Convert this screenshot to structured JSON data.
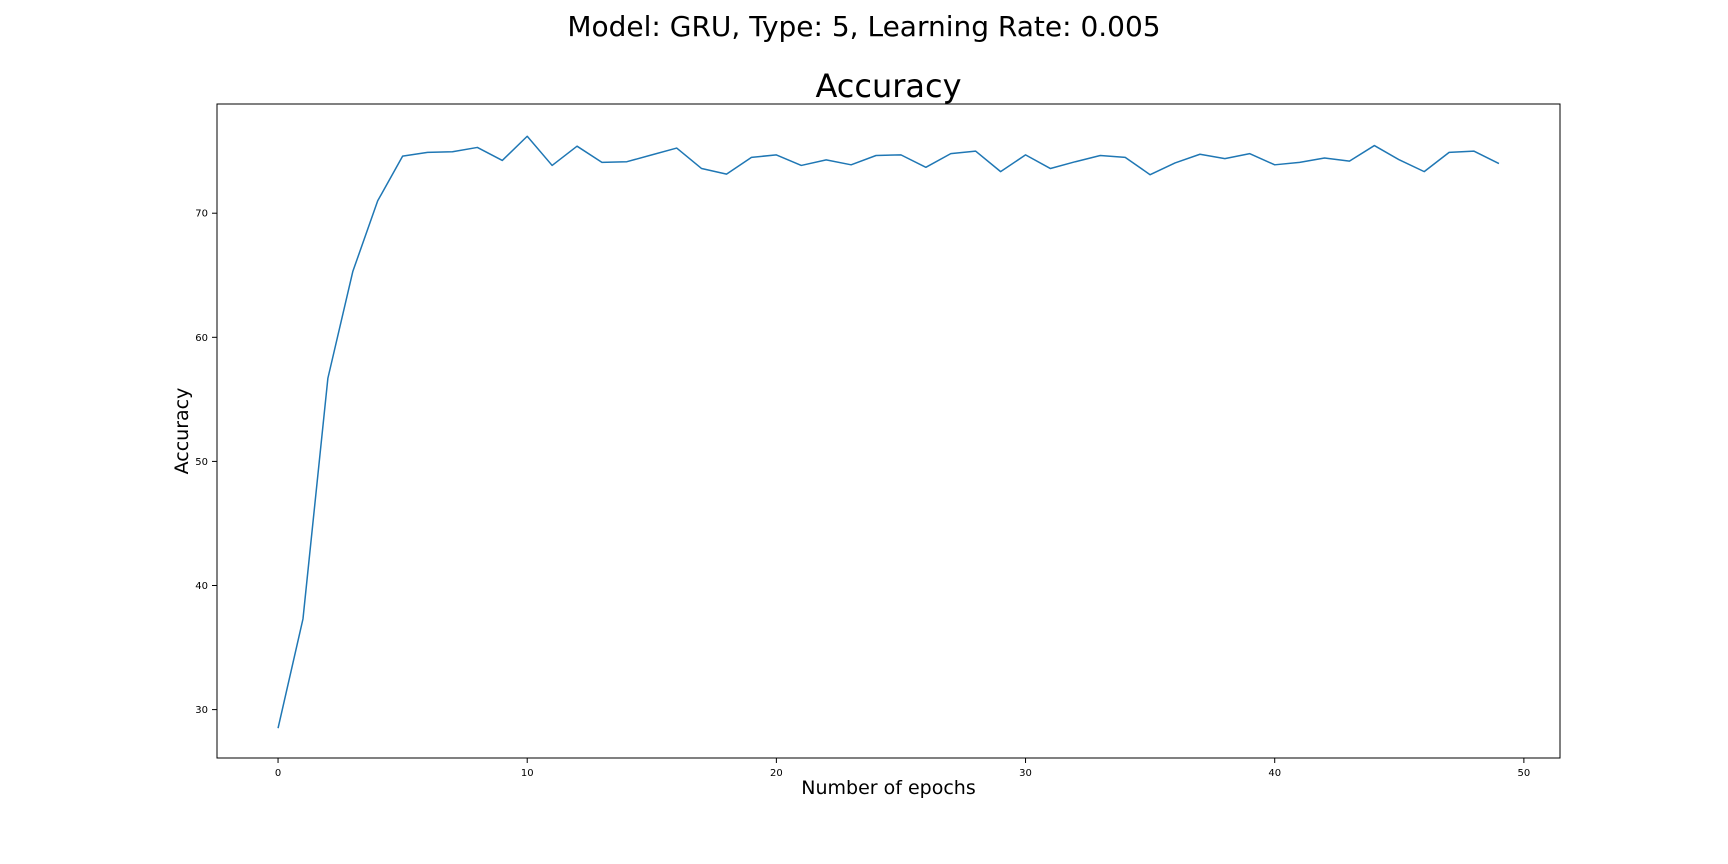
{
  "figure": {
    "suptitle": "Model: GRU, Type: 5, Learning Rate: 0.005"
  },
  "chart_data": {
    "type": "line",
    "title": "Accuracy",
    "xlabel": "Number of epochs",
    "ylabel": "Accuracy",
    "xlim": [
      -2.45,
      51.45
    ],
    "ylim": [
      26.1,
      78.8
    ],
    "xticks": [
      0,
      10,
      20,
      30,
      40,
      50
    ],
    "yticks": [
      30,
      40,
      50,
      60,
      70
    ],
    "grid": false,
    "series": [
      {
        "color": "#1f77b4",
        "x": [
          0,
          1,
          2,
          3,
          4,
          5,
          6,
          7,
          8,
          9,
          10,
          11,
          12,
          13,
          14,
          15,
          16,
          17,
          18,
          19,
          20,
          21,
          22,
          23,
          24,
          25,
          26,
          27,
          28,
          29,
          30,
          31,
          32,
          33,
          34,
          35,
          36,
          37,
          38,
          39,
          40,
          41,
          42,
          43,
          44,
          45,
          46,
          47,
          48,
          49
        ],
        "y": [
          28.5,
          37.3,
          56.7,
          65.3,
          71.0,
          74.6,
          74.9,
          74.95,
          75.3,
          74.25,
          76.2,
          73.85,
          75.4,
          74.1,
          74.15,
          74.7,
          75.25,
          73.6,
          73.15,
          74.5,
          74.7,
          73.85,
          74.3,
          73.9,
          74.65,
          74.7,
          73.7,
          74.8,
          75.0,
          73.35,
          74.7,
          73.6,
          74.15,
          74.65,
          74.5,
          73.1,
          74.05,
          74.75,
          74.4,
          74.8,
          73.9,
          74.1,
          74.45,
          74.2,
          75.45,
          74.3,
          73.35,
          74.9,
          75.0,
          74.0
        ]
      }
    ]
  }
}
